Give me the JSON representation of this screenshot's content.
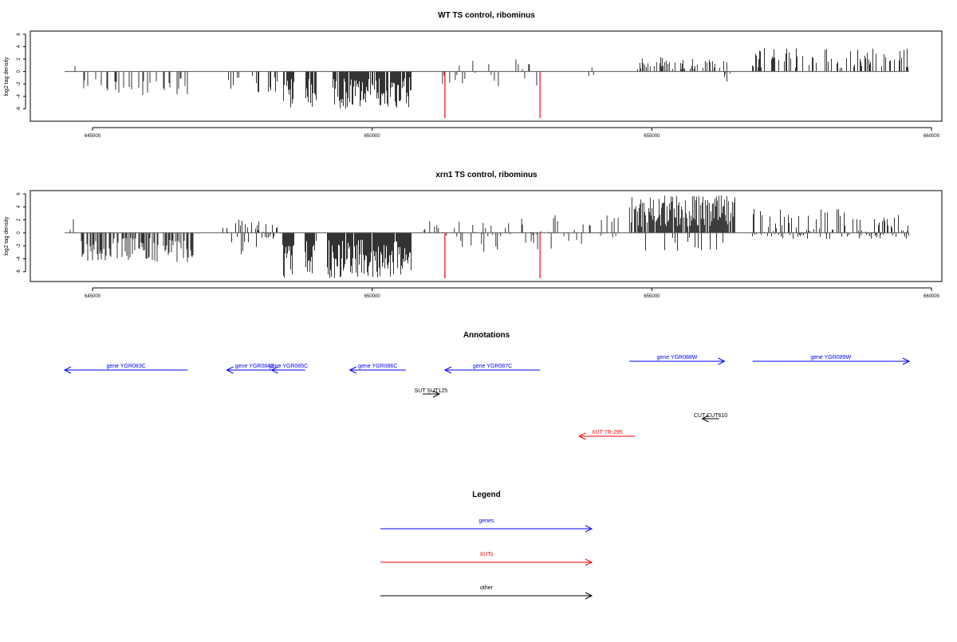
{
  "panels": [
    {
      "title": "WT TS control, ribominus",
      "ylabel": "log2 tag density",
      "yticks": [
        "6",
        "4",
        "2",
        "0",
        "-2",
        "-4",
        "-6"
      ],
      "xticks": [
        "645000",
        "650000",
        "655000",
        "660000"
      ],
      "ylim": [
        -8,
        6.5
      ],
      "xlim": [
        644000,
        660300
      ]
    },
    {
      "title": "xrn1 TS control, ribominus",
      "ylabel": "log2 tag density",
      "yticks": [
        "6",
        "4",
        "2",
        "0",
        "-2",
        "-4",
        "-6"
      ],
      "xticks": [
        "645000",
        "650000",
        "655000",
        "660000"
      ],
      "ylim": [
        -7.5,
        6.5
      ],
      "xlim": [
        644000,
        660300
      ]
    }
  ],
  "annotations": {
    "title": "Annotations",
    "genes": [
      {
        "label": "gene YGR083C",
        "start": 644500,
        "end": 646700,
        "strand": "-"
      },
      {
        "label": "gene YGR084C",
        "start": 647400,
        "end": 648400,
        "strand": "-"
      },
      {
        "label": "gene YGR085C",
        "start": 648200,
        "end": 648800,
        "strand": "-"
      },
      {
        "label": "gene YGR086C",
        "start": 649600,
        "end": 650600,
        "strand": "-"
      },
      {
        "label": "gene YGR087C",
        "start": 651300,
        "end": 653000,
        "strand": "-"
      },
      {
        "label": "gene YGR088W",
        "start": 654600,
        "end": 656300,
        "strand": "+"
      },
      {
        "label": "gene YGR089W",
        "start": 656800,
        "end": 659600,
        "strand": "+"
      }
    ],
    "xuts": [
      {
        "label": "XUT 7R-295",
        "start": 653700,
        "end": 654700,
        "strand": "-"
      }
    ],
    "other": [
      {
        "label": "SUT SUT125",
        "start": 650900,
        "end": 651200,
        "strand": "+"
      },
      {
        "label": "CUT CUT610",
        "start": 655900,
        "end": 656200,
        "strand": "-"
      }
    ]
  },
  "legend": {
    "title": "Legend",
    "items": [
      {
        "label": "genes",
        "color": "#0000ff"
      },
      {
        "label": "XUTs",
        "color": "#ff0000"
      },
      {
        "label": "other",
        "color": "#000000"
      }
    ]
  },
  "colors": {
    "gene": "#0000ff",
    "xut": "#ff0000",
    "other": "#000000",
    "marker": "#ff0000",
    "bars": "#000000",
    "baseline": "#555555"
  },
  "chart_data": [
    {
      "type": "bar",
      "title": "WT TS control, ribominus",
      "ylabel": "log2 tag density",
      "markers_x": [
        651300,
        653000
      ],
      "regions": [
        {
          "x0": 644600,
          "x1": 644700,
          "y_min": -0.5,
          "y_max": 1.0,
          "density": 0.3
        },
        {
          "x0": 644800,
          "x1": 646700,
          "y_min": -4.0,
          "y_max": 0,
          "density": 0.25
        },
        {
          "x0": 647400,
          "x1": 648300,
          "y_min": -3.5,
          "y_max": 0,
          "density": 0.3
        },
        {
          "x0": 648400,
          "x1": 648600,
          "y_min": -6.2,
          "y_max": 0,
          "density": 0.8
        },
        {
          "x0": 648800,
          "x1": 649000,
          "y_min": -6.0,
          "y_max": 0,
          "density": 0.8
        },
        {
          "x0": 649300,
          "x1": 650700,
          "y_min": -6.0,
          "y_max": 0,
          "density": 0.85
        },
        {
          "x0": 651200,
          "x1": 653000,
          "y_min": -2.5,
          "y_max": 2.0,
          "density": 0.2
        },
        {
          "x0": 653800,
          "x1": 654000,
          "y_min": -1.0,
          "y_max": 1.0,
          "density": 0.3
        },
        {
          "x0": 654600,
          "x1": 656400,
          "y_min": 0,
          "y_max": 2.5,
          "density": 0.3
        },
        {
          "x0": 656300,
          "x1": 656400,
          "y_min": -2.0,
          "y_max": 0,
          "density": 0.4
        },
        {
          "x0": 656800,
          "x1": 659600,
          "y_min": 0,
          "y_max": 3.8,
          "density": 0.35
        }
      ]
    },
    {
      "type": "bar",
      "title": "xrn1 TS control, ribominus",
      "ylabel": "log2 tag density",
      "markers_x": [
        651300,
        653000
      ],
      "regions": [
        {
          "x0": 644600,
          "x1": 644700,
          "y_min": -0.5,
          "y_max": 2.2,
          "density": 0.5
        },
        {
          "x0": 644800,
          "x1": 646800,
          "y_min": -4.5,
          "y_max": 0,
          "density": 0.55
        },
        {
          "x0": 647300,
          "x1": 648100,
          "y_min": -4.0,
          "y_max": 2.0,
          "density": 0.6
        },
        {
          "x0": 648100,
          "x1": 648300,
          "y_min": -1.0,
          "y_max": 2.5,
          "density": 0.5
        },
        {
          "x0": 648400,
          "x1": 648600,
          "y_min": -7.0,
          "y_max": 0,
          "density": 0.9
        },
        {
          "x0": 648800,
          "x1": 649000,
          "y_min": -6.5,
          "y_max": 0,
          "density": 0.9
        },
        {
          "x0": 649200,
          "x1": 650700,
          "y_min": -7.0,
          "y_max": 0,
          "density": 0.95
        },
        {
          "x0": 650900,
          "x1": 652500,
          "y_min": -3.0,
          "y_max": 2.0,
          "density": 0.3
        },
        {
          "x0": 652500,
          "x1": 654400,
          "y_min": -3.0,
          "y_max": 2.8,
          "density": 0.3
        },
        {
          "x0": 654600,
          "x1": 656500,
          "y_min": 0,
          "y_max": 5.8,
          "density": 0.9
        },
        {
          "x0": 654800,
          "x1": 656300,
          "y_min": -3.0,
          "y_max": 0,
          "density": 0.15
        },
        {
          "x0": 656800,
          "x1": 659600,
          "y_min": -1.0,
          "y_max": 3.8,
          "density": 0.55
        }
      ]
    }
  ]
}
